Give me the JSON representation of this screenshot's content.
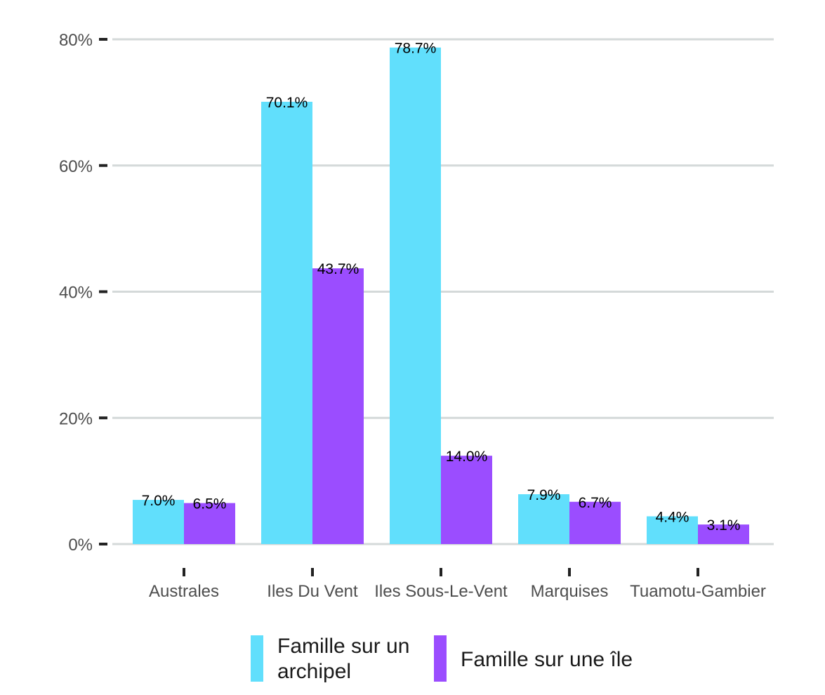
{
  "chart_data": {
    "type": "bar",
    "categories": [
      "Australes",
      "Iles Du Vent",
      "Iles Sous-Le-Vent",
      "Marquises",
      "Tuamotu-Gambier"
    ],
    "series": [
      {
        "name": "Famille sur un archipel",
        "values": [
          7.0,
          70.1,
          78.7,
          7.9,
          4.4
        ],
        "labels": [
          "7.0%",
          "70.1%",
          "78.7%",
          "7.9%",
          "4.4%"
        ],
        "color": "#61dffc"
      },
      {
        "name": "Famille sur une île",
        "values": [
          6.5,
          43.7,
          14.0,
          6.7,
          3.1
        ],
        "labels": [
          "6.5%",
          "43.7%",
          "14.0%",
          "6.7%",
          "3.1%"
        ],
        "color": "#9b4dff"
      }
    ],
    "ylim": [
      0,
      80
    ],
    "yticks": [
      0,
      20,
      40,
      60,
      80
    ],
    "ytick_labels": [
      "0%",
      "20%",
      "40%",
      "60%",
      "80%"
    ],
    "title": "",
    "xlabel": "",
    "ylabel": "",
    "grid": true,
    "legend_position": "bottom",
    "legend": [
      {
        "lines": [
          "Famille sur un",
          "archipel"
        ],
        "color": "#61dffc"
      },
      {
        "lines": [
          "Famille sur une île"
        ],
        "color": "#9b4dff"
      }
    ]
  }
}
